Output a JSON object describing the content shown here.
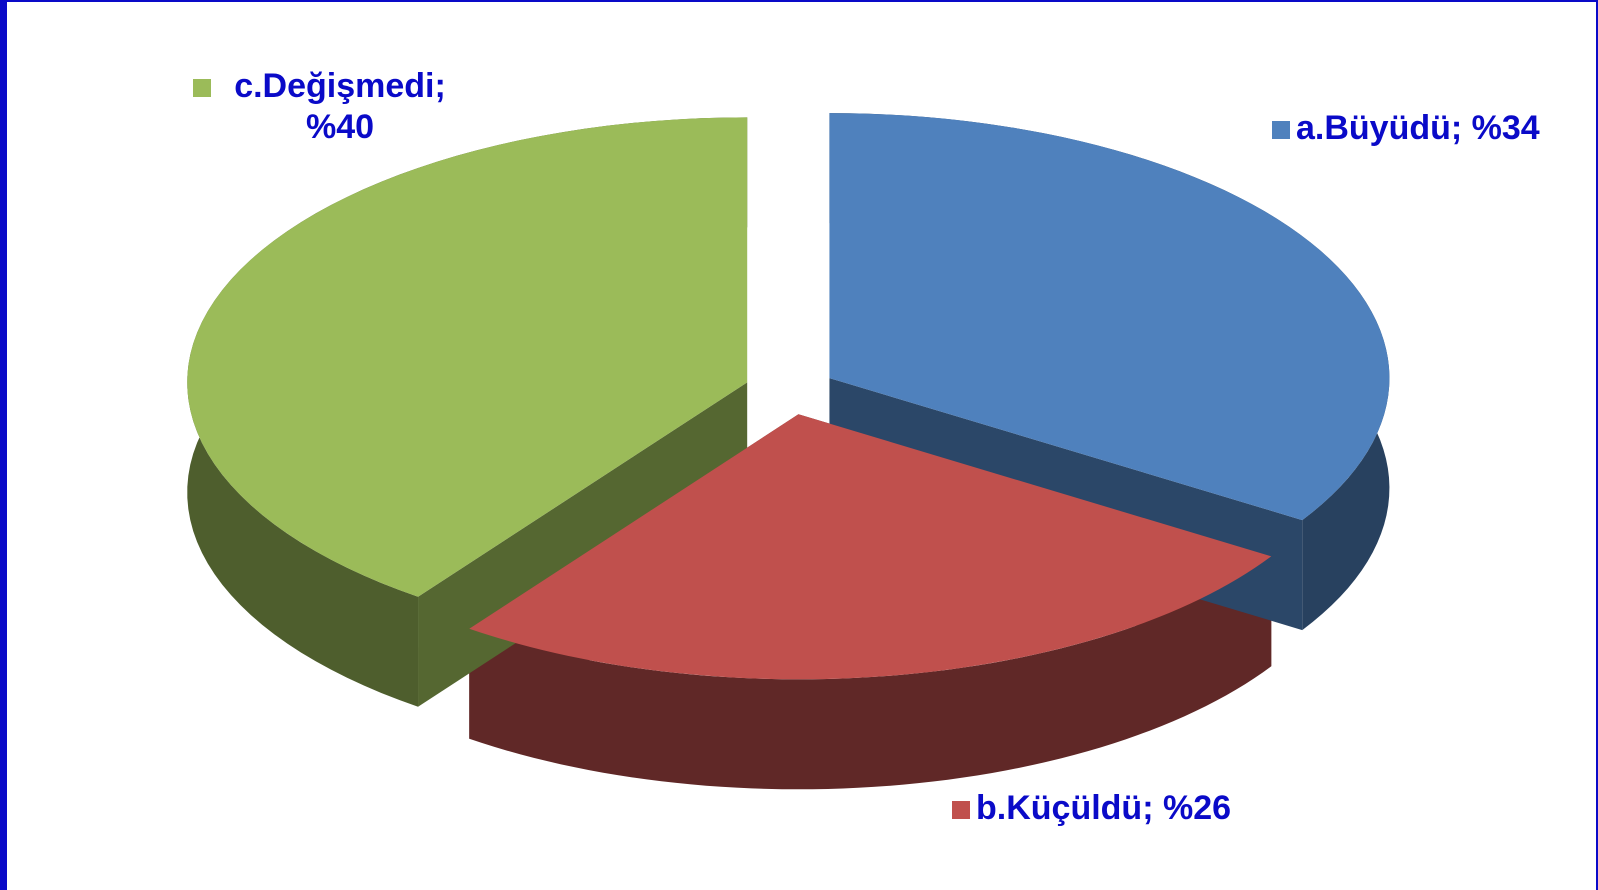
{
  "chart_data": {
    "type": "pie",
    "values": [
      34,
      26,
      40
    ],
    "value_labels": [
      "a.Büyüdü; %34",
      "b.Küçüldü; %26",
      "c.Değişmedi; %40"
    ],
    "colors": [
      "#4f81bd",
      "#c0504d",
      "#9bbb59"
    ]
  }
}
